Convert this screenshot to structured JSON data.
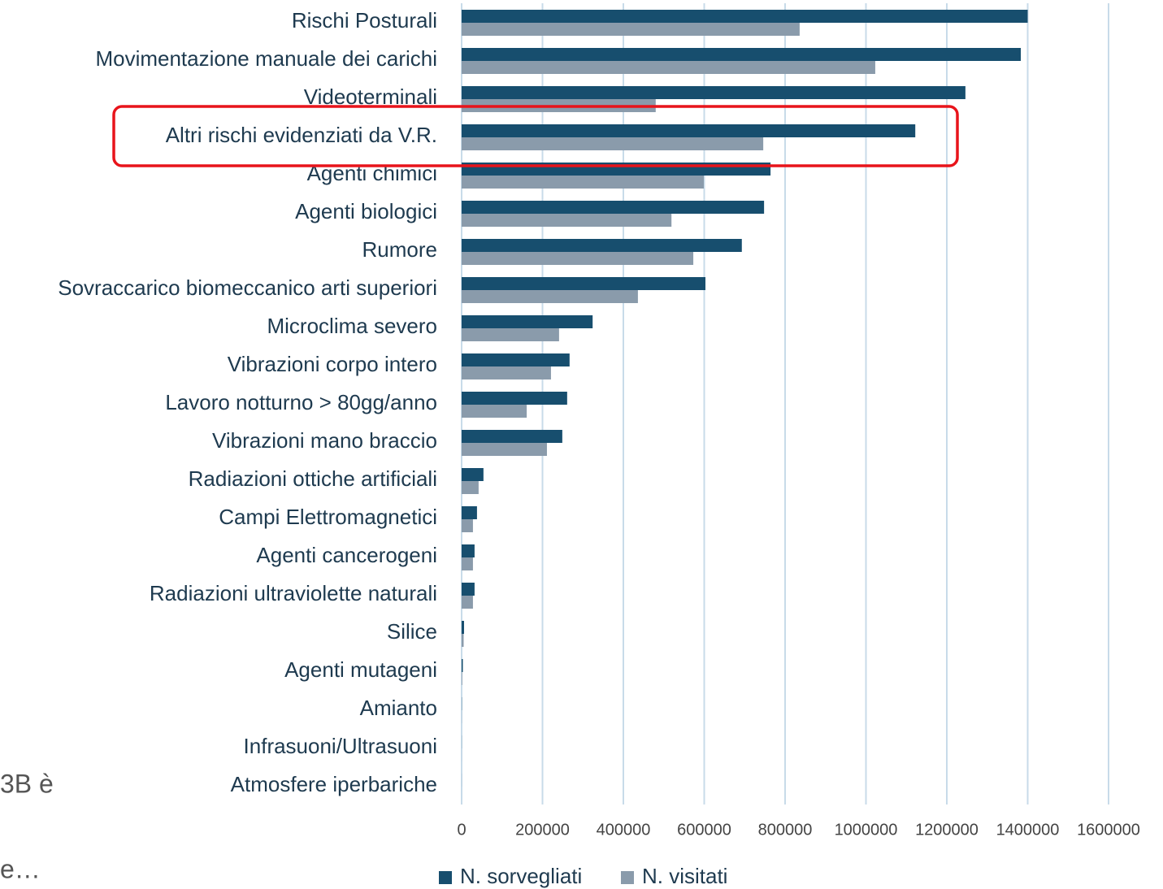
{
  "chart_data": {
    "type": "barh",
    "categories": [
      "Rischi Posturali",
      "Movimentazione manuale dei carichi",
      "Videoterminali",
      "Altri rischi evidenziati da V.R.",
      "Agenti chimici",
      "Agenti biologici",
      "Rumore",
      "Sovraccarico biomeccanico arti superiori",
      "Microclima severo",
      "Vibrazioni corpo intero",
      "Lavoro notturno > 80gg/anno",
      "Vibrazioni mano braccio",
      "Radiazioni ottiche artificiali",
      "Campi Elettromagnetici",
      "Agenti cancerogeni",
      "Radiazioni ultraviolette naturali",
      "Silice",
      "Agenti mutageni",
      "Amianto",
      "Infrasuoni/Ultrasuoni",
      "Atmosfere iperbariche"
    ],
    "series": [
      {
        "name": "N. sorvegliati",
        "color": "#174e6e",
        "values": [
          1400000,
          1383000,
          1246000,
          1122000,
          764000,
          748000,
          693000,
          603000,
          324000,
          267000,
          261000,
          249000,
          54000,
          38000,
          32000,
          32000,
          6000,
          3000,
          500,
          200,
          100
        ]
      },
      {
        "name": "N. visitati",
        "color": "#8a9bab",
        "values": [
          836000,
          1023000,
          480000,
          746000,
          599000,
          519000,
          573000,
          436000,
          241000,
          221000,
          161000,
          211000,
          42000,
          28000,
          28000,
          28000,
          5000,
          1500,
          300,
          100,
          50
        ]
      }
    ],
    "xlim": [
      0,
      1600000
    ],
    "xticks": [
      0,
      200000,
      400000,
      600000,
      800000,
      1000000,
      1200000,
      1400000,
      1600000
    ],
    "grid": true,
    "legend": "bottom"
  },
  "side_text": [
    "3B  è",
    "e…"
  ]
}
